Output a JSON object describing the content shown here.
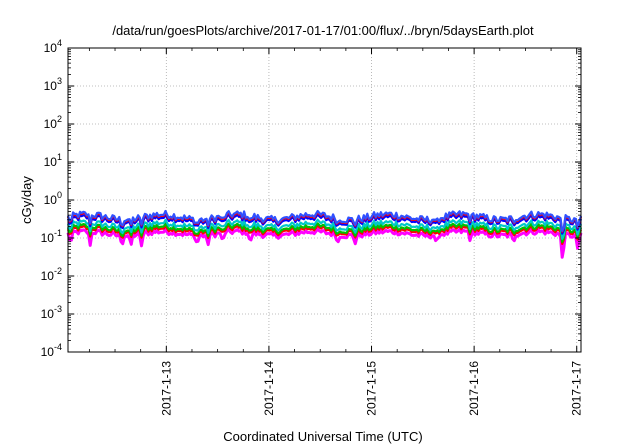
{
  "chart_data": {
    "type": "line",
    "title": "/data/run/goesPlots/archive/2017-01-17/01:00/flux/../bryn/5daysEarth.plot",
    "xlabel": "Coordinated Universal Time (UTC)",
    "ylabel": "cGy/day",
    "yscale": "log",
    "ylim": [
      0.0001,
      10000
    ],
    "y_ticks": [
      {
        "value": 0.0001,
        "base": "10",
        "exp": "-4"
      },
      {
        "value": 0.001,
        "base": "10",
        "exp": "-3"
      },
      {
        "value": 0.01,
        "base": "10",
        "exp": "-2"
      },
      {
        "value": 0.1,
        "base": "10",
        "exp": "-1"
      },
      {
        "value": 1,
        "base": "10",
        "exp": "0"
      },
      {
        "value": 10,
        "base": "10",
        "exp": "1"
      },
      {
        "value": 100,
        "base": "10",
        "exp": "2"
      },
      {
        "value": 1000,
        "base": "10",
        "exp": "3"
      },
      {
        "value": 10000,
        "base": "10",
        "exp": "4"
      }
    ],
    "xlim": [
      "2017-01-12T01:00",
      "2017-01-17T01:00"
    ],
    "x_ticks": [
      {
        "value": "2017-01-13T00:00",
        "label": "2017-1-13"
      },
      {
        "value": "2017-01-14T00:00",
        "label": "2017-1-14"
      },
      {
        "value": "2017-01-15T00:00",
        "label": "2017-1-15"
      },
      {
        "value": "2017-01-16T00:00",
        "label": "2017-1-16"
      },
      {
        "value": "2017-01-17T00:00",
        "label": "2017-1-17"
      }
    ],
    "grid": true,
    "legend": "none",
    "series": [
      {
        "color": "#ff00ff",
        "level": 0.13,
        "dips": [
          {
            "x": "2017-01-12T01:40",
            "y": 0.07
          },
          {
            "x": "2017-01-12T06:10",
            "y": 0.06
          },
          {
            "x": "2017-01-12T13:40",
            "y": 0.08
          },
          {
            "x": "2017-01-12T15:40",
            "y": 0.065
          },
          {
            "x": "2017-01-12T18:10",
            "y": 0.065
          },
          {
            "x": "2017-01-13T07:10",
            "y": 0.075
          },
          {
            "x": "2017-01-13T09:40",
            "y": 0.07
          },
          {
            "x": "2017-01-13T13:10",
            "y": 0.07
          },
          {
            "x": "2017-01-13T19:40",
            "y": 0.065
          },
          {
            "x": "2017-01-14T16:10",
            "y": 0.08
          },
          {
            "x": "2017-01-14T20:10",
            "y": 0.085
          },
          {
            "x": "2017-01-15T15:10",
            "y": 0.065
          },
          {
            "x": "2017-01-15T23:10",
            "y": 0.075
          },
          {
            "x": "2017-01-16T09:10",
            "y": 0.08
          },
          {
            "x": "2017-01-16T20:40",
            "y": 0.028
          },
          {
            "x": "2017-01-17T00:10",
            "y": 0.06
          }
        ]
      },
      {
        "color": "#ff0000",
        "level": 0.16,
        "dips": []
      },
      {
        "color": "#00c000",
        "level": 0.18,
        "dips": []
      },
      {
        "color": "#00c8c8",
        "level": 0.22,
        "dips": []
      },
      {
        "color": "#0000ff",
        "level": 0.3,
        "dips": []
      },
      {
        "color": "#ff0000",
        "level": 0.34,
        "dips": []
      },
      {
        "color": "#3050ff",
        "level": 0.36,
        "dips": []
      }
    ]
  }
}
